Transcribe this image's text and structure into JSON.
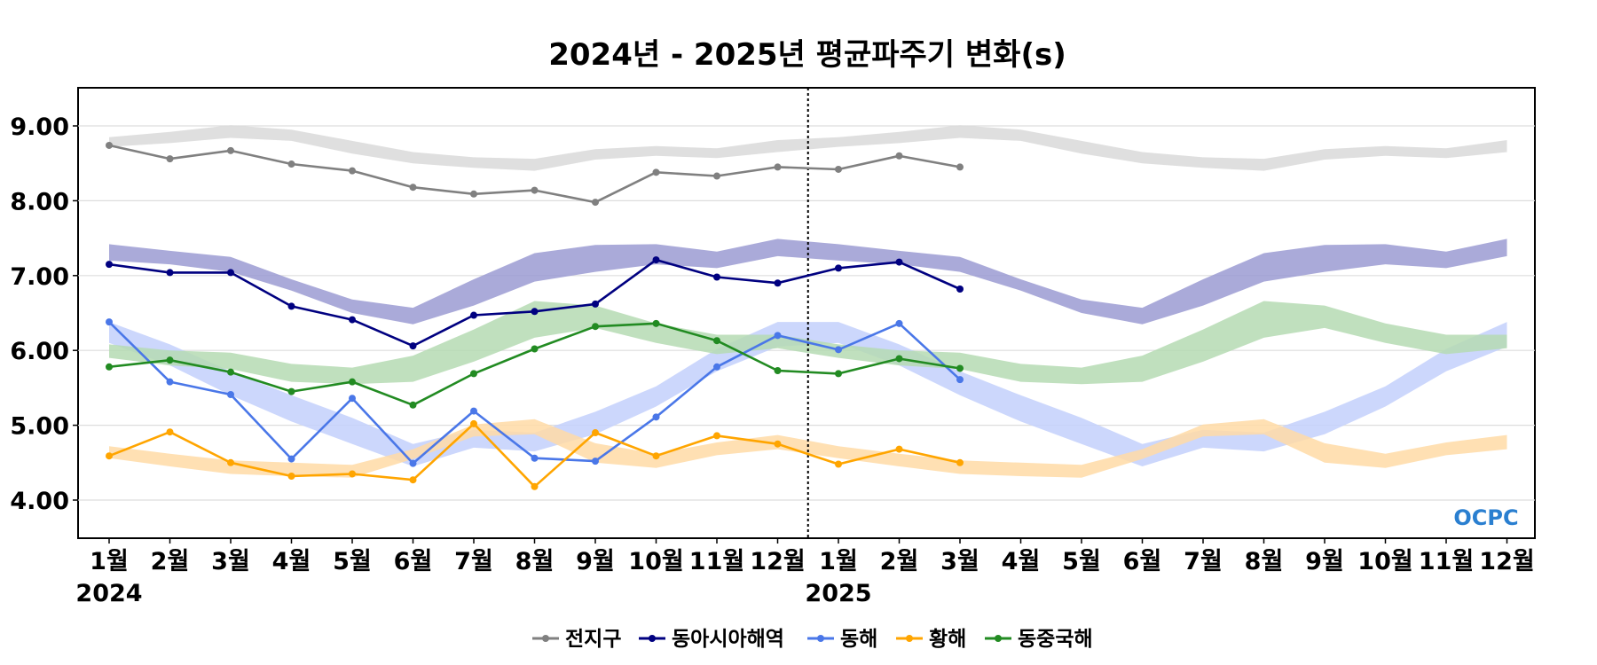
{
  "chart_data": {
    "type": "line",
    "title": "2024년 - 2025년 평균파주기 변화(s)",
    "xlabel": "",
    "ylabel": "",
    "ylim": [
      3.5,
      9.5
    ],
    "yticks": [
      "4.00",
      "5.00",
      "6.00",
      "7.00",
      "8.00",
      "9.00"
    ],
    "ytick_values": [
      4,
      5,
      6,
      7,
      8,
      9
    ],
    "x_labels": [
      "1월",
      "2월",
      "3월",
      "4월",
      "5월",
      "6월",
      "7월",
      "8월",
      "9월",
      "10월",
      "11월",
      "12월",
      "1월",
      "2월",
      "3월",
      "4월",
      "5월",
      "6월",
      "7월",
      "8월",
      "9월",
      "10월",
      "11월",
      "12월"
    ],
    "year_labels": [
      {
        "label": "2024",
        "index": 0
      },
      {
        "label": "2025",
        "index": 12
      }
    ],
    "divider_index": 11.5,
    "grid": "horizontal",
    "legend_position": "bottom",
    "logo_text": "OCPC",
    "series": [
      {
        "name": "전지구",
        "color": "#808080",
        "band_color": "#d9d9d9",
        "values": [
          8.74,
          8.56,
          8.67,
          8.49,
          8.4,
          8.18,
          8.09,
          8.14,
          7.98,
          8.38,
          8.33,
          8.45,
          8.42,
          8.6,
          8.45
        ],
        "band_upper": [
          8.85,
          8.92,
          9.01,
          8.95,
          8.8,
          8.65,
          8.58,
          8.56,
          8.69,
          8.73,
          8.7,
          8.81,
          8.85,
          8.92,
          9.01,
          8.95,
          8.8,
          8.65,
          8.58,
          8.56,
          8.69,
          8.73,
          8.7,
          8.81
        ],
        "band_lower": [
          8.72,
          8.77,
          8.84,
          8.8,
          8.63,
          8.5,
          8.44,
          8.4,
          8.55,
          8.6,
          8.57,
          8.65,
          8.72,
          8.77,
          8.84,
          8.8,
          8.63,
          8.5,
          8.44,
          8.4,
          8.55,
          8.6,
          8.57,
          8.65
        ]
      },
      {
        "name": "동아시아해역",
        "color": "#000080",
        "band_color": "#9b9bd2",
        "values": [
          7.15,
          7.04,
          7.04,
          6.59,
          6.41,
          6.06,
          6.47,
          6.52,
          6.62,
          7.21,
          6.98,
          6.9,
          7.1,
          7.18,
          6.82
        ],
        "band_upper": [
          7.42,
          7.33,
          7.25,
          6.95,
          6.68,
          6.57,
          6.95,
          7.3,
          7.41,
          7.42,
          7.32,
          7.49,
          7.42,
          7.33,
          7.25,
          6.95,
          6.68,
          6.57,
          6.95,
          7.3,
          7.41,
          7.42,
          7.32,
          7.49
        ],
        "band_lower": [
          7.2,
          7.15,
          7.05,
          6.8,
          6.5,
          6.35,
          6.6,
          6.92,
          7.05,
          7.15,
          7.1,
          7.26,
          7.2,
          7.15,
          7.05,
          6.8,
          6.5,
          6.35,
          6.6,
          6.92,
          7.05,
          7.15,
          7.1,
          7.26
        ]
      },
      {
        "name": "동해",
        "color": "#4a77e8",
        "band_color": "#c3d0fb",
        "values": [
          6.38,
          5.58,
          5.41,
          4.55,
          5.36,
          4.49,
          5.19,
          4.56,
          4.52,
          5.11,
          5.78,
          6.2,
          6.01,
          6.36,
          5.61
        ],
        "band_upper": [
          6.38,
          6.08,
          5.72,
          5.4,
          5.1,
          4.75,
          4.94,
          4.9,
          5.18,
          5.52,
          6.02,
          6.38,
          6.38,
          6.08,
          5.72,
          5.4,
          5.1,
          4.75,
          4.94,
          4.9,
          5.18,
          5.52,
          6.02,
          6.38
        ],
        "band_lower": [
          6.1,
          5.8,
          5.4,
          5.05,
          4.75,
          4.45,
          4.7,
          4.65,
          4.88,
          5.25,
          5.72,
          6.05,
          6.1,
          5.8,
          5.4,
          5.05,
          4.75,
          4.45,
          4.7,
          4.65,
          4.88,
          5.25,
          5.72,
          6.05
        ]
      },
      {
        "name": "황해",
        "color": "#ffa500",
        "band_color": "#ffdba6",
        "values": [
          4.59,
          4.91,
          4.5,
          4.32,
          4.35,
          4.27,
          5.02,
          4.18,
          4.9,
          4.59,
          4.86,
          4.75,
          4.48,
          4.68,
          4.5
        ],
        "band_upper": [
          4.72,
          4.62,
          4.53,
          4.5,
          4.47,
          4.68,
          5.01,
          5.08,
          4.76,
          4.62,
          4.77,
          4.87,
          4.72,
          4.62,
          4.53,
          4.5,
          4.47,
          4.68,
          5.01,
          5.08,
          4.76,
          4.62,
          4.77,
          4.87
        ],
        "band_lower": [
          4.56,
          4.45,
          4.35,
          4.32,
          4.3,
          4.55,
          4.85,
          4.88,
          4.5,
          4.43,
          4.6,
          4.68,
          4.56,
          4.45,
          4.35,
          4.32,
          4.3,
          4.55,
          4.85,
          4.88,
          4.5,
          4.43,
          4.6,
          4.68
        ]
      },
      {
        "name": "동중국해",
        "color": "#228b22",
        "band_color": "#b5dbb3",
        "values": [
          5.78,
          5.87,
          5.71,
          5.45,
          5.58,
          5.27,
          5.69,
          6.02,
          6.32,
          6.36,
          6.13,
          5.73,
          5.69,
          5.89,
          5.76
        ],
        "band_upper": [
          6.08,
          6.0,
          5.97,
          5.82,
          5.77,
          5.93,
          6.28,
          6.66,
          6.6,
          6.36,
          6.21,
          6.21,
          6.08,
          6.0,
          5.97,
          5.82,
          5.77,
          5.93,
          6.28,
          6.66,
          6.6,
          6.36,
          6.21,
          6.21
        ],
        "band_lower": [
          5.9,
          5.8,
          5.75,
          5.58,
          5.55,
          5.58,
          5.85,
          6.17,
          6.3,
          6.1,
          5.95,
          6.03,
          5.9,
          5.8,
          5.75,
          5.58,
          5.55,
          5.58,
          5.85,
          6.17,
          6.3,
          6.1,
          5.95,
          6.03
        ]
      }
    ]
  }
}
